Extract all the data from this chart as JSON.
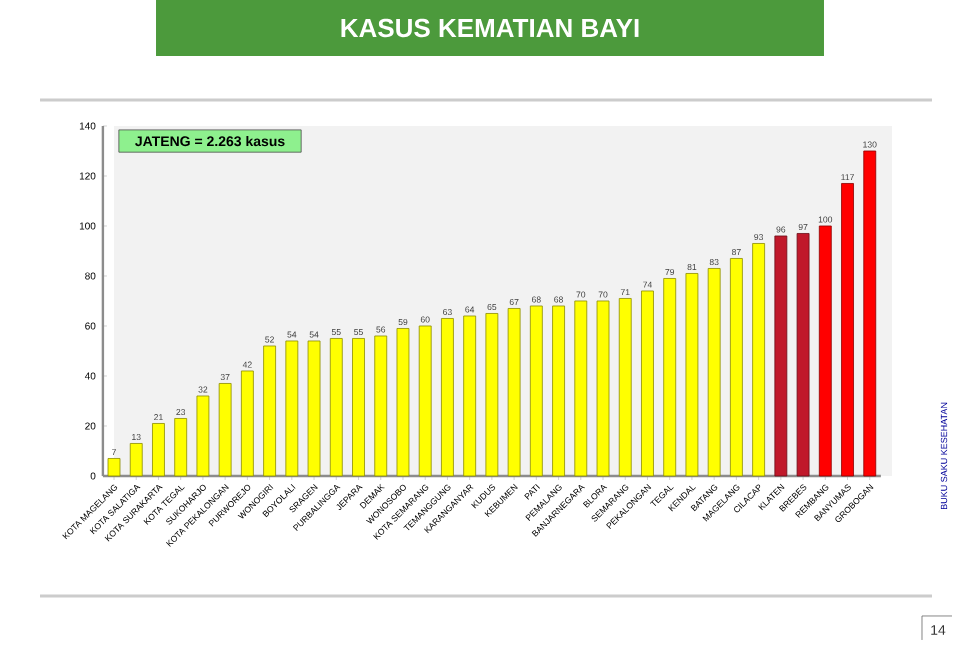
{
  "chart_data": {
    "type": "bar",
    "title": "KASUS KEMATIAN BAYI",
    "categories": [
      "KOTA MAGELANG",
      "KOTA SALATIGA",
      "KOTA SURAKARTA",
      "KOTA TEGAL",
      "SUKOHARJO",
      "KOTA PEKALONGAN",
      "PURWOREJO",
      "WONOGIRI",
      "BOYOLALI",
      "SRAGEN",
      "PURBALINGGA",
      "JEPARA",
      "DEMAK",
      "WONOSOBO",
      "KOTA SEMARANG",
      "TEMANGGUNG",
      "KARANGANYAR",
      "KUDUS",
      "KEBUMEN",
      "PATI",
      "PEMALANG",
      "BANJARNEGARA",
      "BLORA",
      "SEMARANG",
      "PEKALONGAN",
      "TEGAL",
      "KENDAL",
      "BATANG",
      "MAGELANG",
      "CILACAP",
      "KLATEN",
      "BREBES",
      "REMBANG",
      "BANYUMAS",
      "GROBOGAN"
    ],
    "values": [
      7,
      13,
      21,
      23,
      32,
      37,
      42,
      52,
      54,
      54,
      55,
      55,
      56,
      59,
      60,
      63,
      64,
      65,
      67,
      68,
      68,
      70,
      70,
      71,
      74,
      79,
      81,
      83,
      87,
      93,
      96,
      97,
      100,
      117,
      130
    ],
    "colors": [
      "#ffff00",
      "#ffff00",
      "#ffff00",
      "#ffff00",
      "#ffff00",
      "#ffff00",
      "#ffff00",
      "#ffff00",
      "#ffff00",
      "#ffff00",
      "#ffff00",
      "#ffff00",
      "#ffff00",
      "#ffff00",
      "#ffff00",
      "#ffff00",
      "#ffff00",
      "#ffff00",
      "#ffff00",
      "#ffff00",
      "#ffff00",
      "#ffff00",
      "#ffff00",
      "#ffff00",
      "#ffff00",
      "#ffff00",
      "#ffff00",
      "#ffff00",
      "#ffff00",
      "#ffff00",
      "#c0182a",
      "#c0182a",
      "#ff0000",
      "#ff0000",
      "#ff0000"
    ],
    "ylim": [
      0,
      140
    ],
    "yticks": [
      0,
      20,
      40,
      60,
      80,
      100,
      120,
      140
    ],
    "data_labels": true,
    "annotations": [
      "JATENG = 2.263 kasus",
      "BUKU SAKU KESEHATAN",
      "14"
    ]
  }
}
